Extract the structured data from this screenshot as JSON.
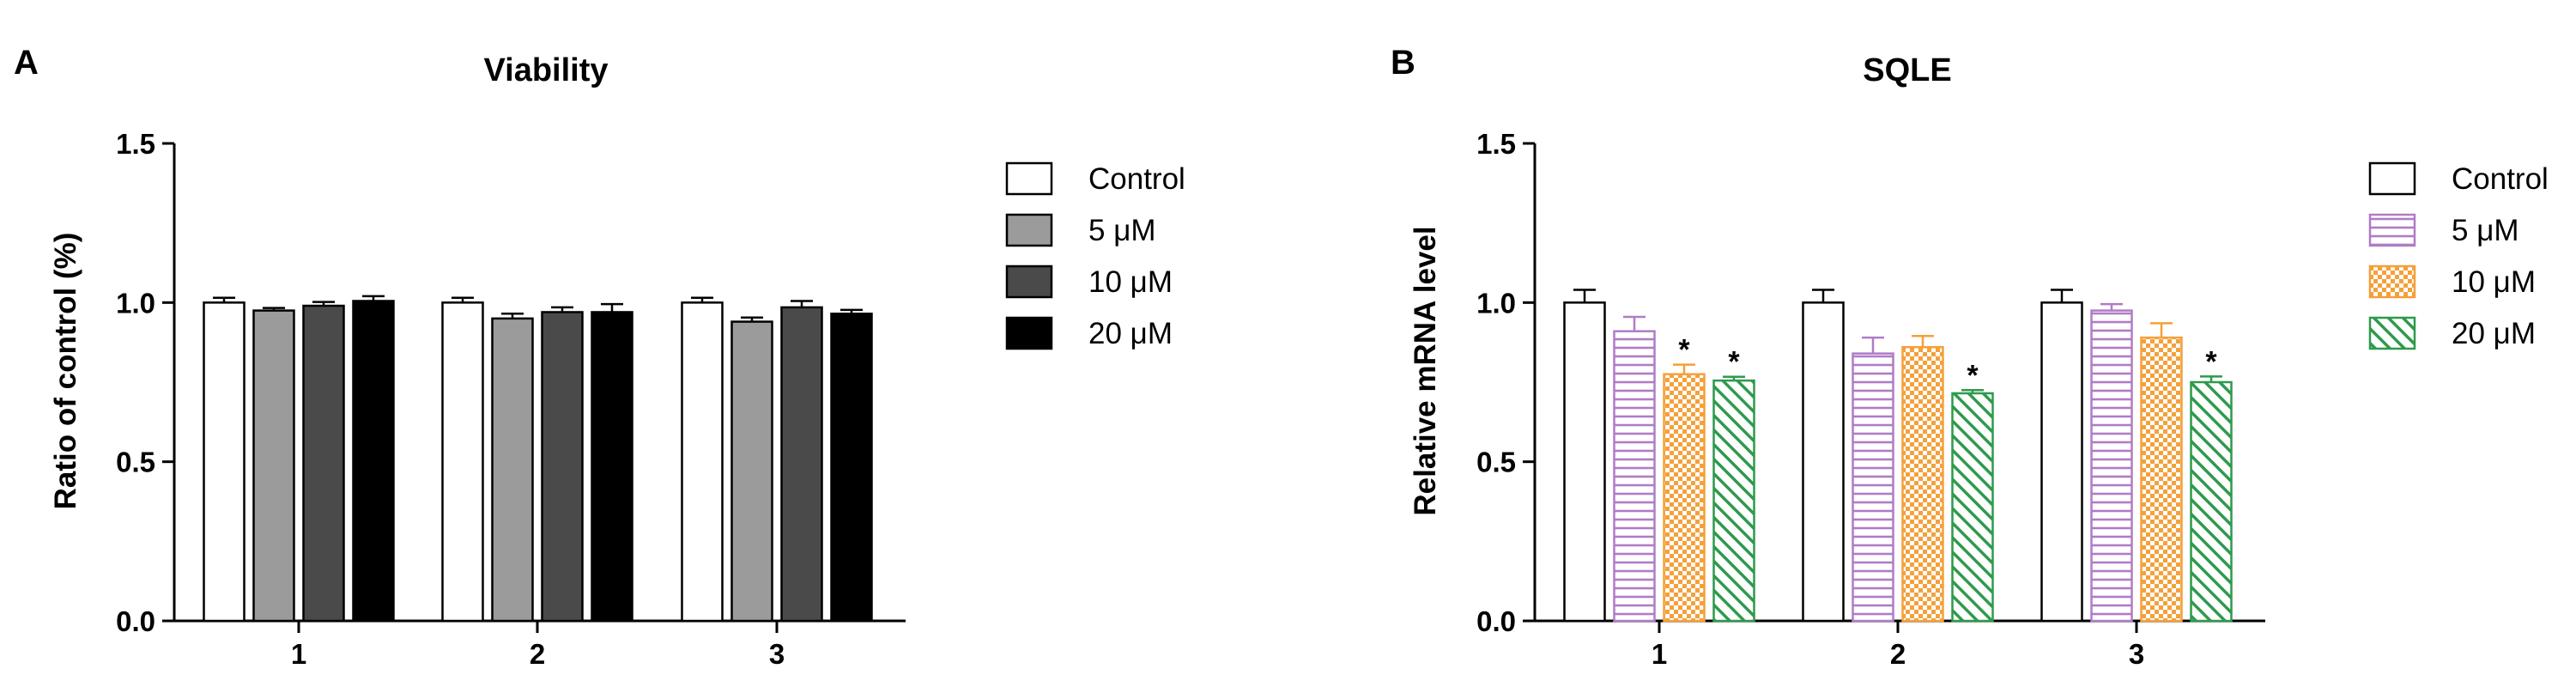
{
  "colors": {
    "axis": "#000000",
    "purple": "#b07cc6",
    "orange": "#f5a03a",
    "green": "#2e9a4c",
    "gray_light": "#9b9b9b",
    "gray_dark": "#4a4a4a",
    "black": "#000000"
  },
  "chart_data": [
    {
      "panel_label": "A",
      "type": "bar",
      "title": "Viability",
      "xlabel": "",
      "ylabel": "Ratio of control (%)",
      "ylim": [
        0,
        1.5
      ],
      "yticks": [
        "0.0",
        "0.5",
        "1.0",
        "1.5"
      ],
      "categories": [
        "1",
        "2",
        "3"
      ],
      "legend_position": "right",
      "series": [
        {
          "name": "Control",
          "fill": "white",
          "values": [
            1.0,
            1.0,
            1.0
          ],
          "errors": [
            0.015,
            0.015,
            0.015
          ],
          "stars": [
            false,
            false,
            false
          ]
        },
        {
          "name": "5 μM",
          "fill": "gray_light",
          "values": [
            0.975,
            0.95,
            0.94
          ],
          "errors": [
            0.008,
            0.015,
            0.013
          ],
          "stars": [
            false,
            false,
            false
          ]
        },
        {
          "name": "10 μM",
          "fill": "gray_dark",
          "values": [
            0.99,
            0.97,
            0.985
          ],
          "errors": [
            0.012,
            0.015,
            0.02
          ],
          "stars": [
            false,
            false,
            false
          ]
        },
        {
          "name": "20 μM",
          "fill": "black",
          "values": [
            1.005,
            0.97,
            0.965
          ],
          "errors": [
            0.015,
            0.025,
            0.012
          ],
          "stars": [
            false,
            false,
            false
          ]
        }
      ]
    },
    {
      "panel_label": "B",
      "type": "bar",
      "title": "SQLE",
      "xlabel": "",
      "ylabel": "Relative mRNA level",
      "ylim": [
        0,
        1.5
      ],
      "yticks": [
        "0.0",
        "0.5",
        "1.0",
        "1.5"
      ],
      "categories": [
        "1",
        "2",
        "3"
      ],
      "legend_position": "right",
      "series": [
        {
          "name": "Control",
          "fill": "white",
          "values": [
            1.0,
            1.0,
            1.0
          ],
          "errors": [
            0.04,
            0.04,
            0.04
          ],
          "stars": [
            false,
            false,
            false
          ]
        },
        {
          "name": "5 μM",
          "fill": "hlines",
          "values": [
            0.91,
            0.84,
            0.975
          ],
          "errors": [
            0.045,
            0.05,
            0.02
          ],
          "stars": [
            false,
            false,
            false
          ]
        },
        {
          "name": "10 μM",
          "fill": "checker",
          "values": [
            0.775,
            0.86,
            0.89
          ],
          "errors": [
            0.03,
            0.035,
            0.045
          ],
          "stars": [
            true,
            false,
            false
          ]
        },
        {
          "name": "20 μM",
          "fill": "diag",
          "values": [
            0.755,
            0.715,
            0.75
          ],
          "errors": [
            0.012,
            0.01,
            0.018
          ],
          "stars": [
            true,
            true,
            true
          ]
        }
      ]
    }
  ]
}
